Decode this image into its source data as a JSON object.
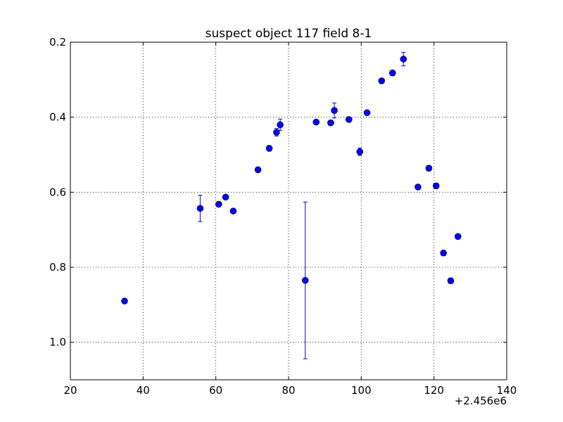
{
  "chart_data": {
    "type": "scatter",
    "title": "suspect object 117 field 8-1",
    "xlabel": "",
    "ylabel": "",
    "x_offset_label": "+2.456e6",
    "xlim": [
      20,
      140
    ],
    "ylim": [
      1.1,
      0.2
    ],
    "y_inverted": true,
    "grid": true,
    "grid_style": "dotted",
    "marker_color": "#0000ff",
    "errorbar_color": "#0000ff",
    "x_ticks": [
      20,
      40,
      60,
      80,
      100,
      120,
      140
    ],
    "y_ticks": [
      0.2,
      0.4,
      0.6,
      0.8,
      1.0
    ],
    "x_tick_labels": [
      "20",
      "40",
      "60",
      "80",
      "100",
      "120",
      "140"
    ],
    "y_tick_labels": [
      "0.2",
      "0.4",
      "0.6",
      "0.8",
      "1.0"
    ],
    "points": [
      {
        "x": 34.9,
        "y": 0.89,
        "err": 0.0
      },
      {
        "x": 55.7,
        "y": 0.643,
        "err": 0.035
      },
      {
        "x": 60.8,
        "y": 0.632,
        "err": 0.0
      },
      {
        "x": 62.7,
        "y": 0.613,
        "err": 0.0
      },
      {
        "x": 64.8,
        "y": 0.65,
        "err": 0.0
      },
      {
        "x": 71.6,
        "y": 0.54,
        "err": 0.0
      },
      {
        "x": 74.7,
        "y": 0.483,
        "err": 0.007
      },
      {
        "x": 76.7,
        "y": 0.44,
        "err": 0.01
      },
      {
        "x": 77.7,
        "y": 0.42,
        "err": 0.015
      },
      {
        "x": 84.6,
        "y": 0.835,
        "err": 0.209
      },
      {
        "x": 87.6,
        "y": 0.413,
        "err": 0.0
      },
      {
        "x": 91.6,
        "y": 0.415,
        "err": 0.0
      },
      {
        "x": 92.6,
        "y": 0.382,
        "err": 0.02
      },
      {
        "x": 96.6,
        "y": 0.406,
        "err": 0.0
      },
      {
        "x": 99.6,
        "y": 0.492,
        "err": 0.01
      },
      {
        "x": 101.6,
        "y": 0.388,
        "err": 0.0
      },
      {
        "x": 105.6,
        "y": 0.303,
        "err": 0.0
      },
      {
        "x": 108.6,
        "y": 0.282,
        "err": 0.007
      },
      {
        "x": 111.6,
        "y": 0.245,
        "err": 0.018
      },
      {
        "x": 115.6,
        "y": 0.586,
        "err": 0.0
      },
      {
        "x": 118.6,
        "y": 0.536,
        "err": 0.007
      },
      {
        "x": 120.6,
        "y": 0.583,
        "err": 0.007
      },
      {
        "x": 122.6,
        "y": 0.762,
        "err": 0.007
      },
      {
        "x": 124.6,
        "y": 0.836,
        "err": 0.007
      },
      {
        "x": 126.6,
        "y": 0.718,
        "err": 0.007
      }
    ]
  }
}
